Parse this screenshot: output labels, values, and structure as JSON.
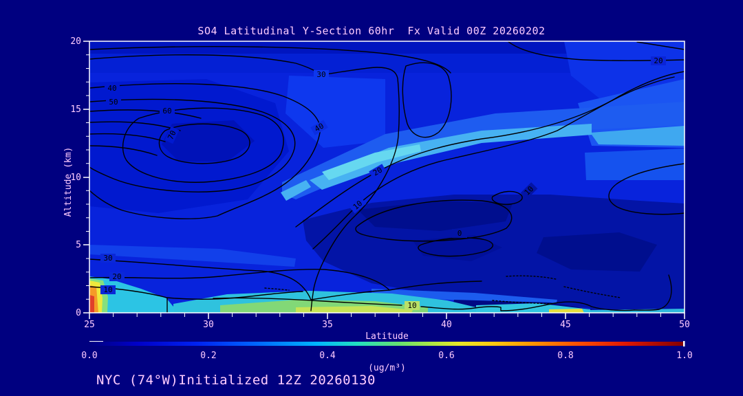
{
  "title": "SO4 Latitudinal Y-Section 60hr  Fx Valid 00Z 20260202",
  "footer": "NYC (74°W)Initialized 12Z 20260130",
  "axes": {
    "y_label": "Altitude (km)",
    "x_label": "Latitude",
    "y_ticks": [
      "20",
      "15",
      "10",
      "5",
      "0"
    ],
    "x_ticks": [
      "25",
      "30",
      "35",
      "40",
      "45",
      "50"
    ]
  },
  "colorbar": {
    "units": "(ug/m³)",
    "ticks": [
      "0.0",
      "0.2",
      "0.4",
      "0.6",
      "0.8",
      "1.0"
    ]
  },
  "contour_labels": [
    {
      "text": "40"
    },
    {
      "text": "50"
    },
    {
      "text": "60"
    },
    {
      "text": "70"
    },
    {
      "text": "30"
    },
    {
      "text": "40"
    },
    {
      "text": "20"
    },
    {
      "text": "10"
    },
    {
      "text": "30"
    },
    {
      "text": "20"
    },
    {
      "text": "10"
    },
    {
      "text": "10"
    },
    {
      "text": "0"
    },
    {
      "text": "10"
    },
    {
      "text": "20"
    }
  ],
  "colors": {
    "background": "#000080",
    "label_text": "#ffccff",
    "frame": "#ffffff",
    "contour_lines": "#000000",
    "base_fill_blue": "#0823dc"
  },
  "chart_data": {
    "type": "heatmap",
    "title": "SO4 Latitudinal Y-Section 60hr  Fx Valid 00Z 20260202",
    "subtitle": "NYC (74°W)Initialized 12Z 20260130",
    "xlabel": "Latitude",
    "ylabel": "Altitude (km)",
    "xlim": [
      25,
      50
    ],
    "ylim": [
      0,
      20
    ],
    "x_ticks": [
      25,
      30,
      35,
      40,
      45,
      50
    ],
    "y_ticks": [
      0,
      5,
      10,
      15,
      20
    ],
    "fill_variable": "SO4 concentration",
    "fill_units": "ug/m3",
    "fill_range": [
      0.0,
      1.0
    ],
    "colorbar_ticks": [
      0.0,
      0.2,
      0.4,
      0.6,
      0.8,
      1.0
    ],
    "colorbar_palette": "navy-blue-cyan-green-yellow-orange-red-darkred",
    "overlay_contour_levels_labeled": [
      0,
      10,
      20,
      30,
      40,
      50,
      60,
      70
    ],
    "grid": false,
    "legend": "bottom horizontal colorbar",
    "features": [
      {
        "desc": "Closed overlay-contour maximum (labels 40/50/60/70) centered near lat 29.5, alt 12-13 km"
      },
      {
        "desc": "Surface maximum at left edge lat 25, alt 0-1 km, fill ~0.5-0.9 ug/m3 (yellow/orange/red column)"
      },
      {
        "desc": "Surface cyan-green band lat 32-41 below 1 km, fill ~0.35-0.55 ug/m3"
      },
      {
        "desc": "Bright cyan fill band ~0.3-0.45 sloping up-right from lat 34, 8 km to lat 48, 11-12 km"
      },
      {
        "desc": "Dark low-fill region (~0.1) lat 36-50, alt 1-6 km containing 0 and 10 overlay contours"
      },
      {
        "desc": "Overlay contour 20 crosses top right near 17-19 km; dotted (negative) contours lat 40-48 below 2 km"
      }
    ]
  }
}
